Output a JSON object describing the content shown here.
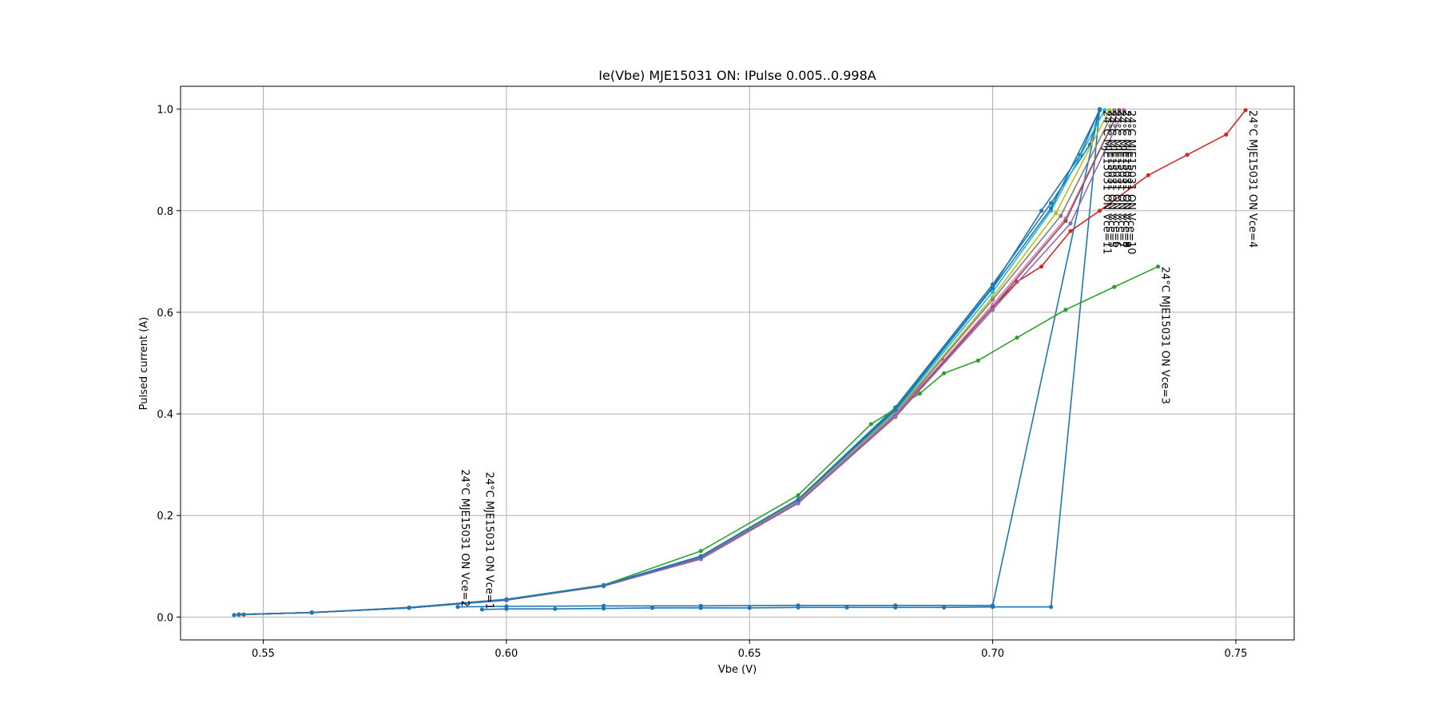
{
  "chart_data": {
    "type": "line",
    "title": "Ie(Vbe) MJE15031 ON: IPulse 0.005..0.998A",
    "xlabel": "Vbe (V)",
    "ylabel": "Pulsed current (A)",
    "xlim": [
      0.533,
      0.762
    ],
    "ylim": [
      -0.045,
      1.045
    ],
    "xticks": [
      0.55,
      0.6,
      0.65,
      0.7,
      0.75
    ],
    "xtick_labels": [
      "0.55",
      "0.60",
      "0.65",
      "0.70",
      "0.75"
    ],
    "yticks": [
      0.0,
      0.2,
      0.4,
      0.6,
      0.8,
      1.0
    ],
    "ytick_labels": [
      "0.0",
      "0.2",
      "0.4",
      "0.6",
      "0.8",
      "1.0"
    ],
    "grid": true,
    "legend": "none",
    "series": [
      {
        "name": "24°C MJE15031 ON Vce=1",
        "color": "#1f77b4",
        "label_anchor": "end",
        "x": [
          0.545,
          0.56,
          0.58,
          0.6,
          0.62,
          0.64,
          0.66,
          0.68,
          0.7,
          0.71,
          0.718,
          0.722,
          0.712,
          0.7,
          0.69,
          0.68,
          0.67,
          0.66,
          0.65,
          0.64,
          0.63,
          0.62,
          0.61,
          0.6,
          0.595
        ],
        "y": [
          0.005,
          0.009,
          0.018,
          0.034,
          0.062,
          0.118,
          0.23,
          0.41,
          0.65,
          0.8,
          0.91,
          1.0,
          0.02,
          0.02,
          0.019,
          0.019,
          0.019,
          0.019,
          0.018,
          0.018,
          0.018,
          0.017,
          0.016,
          0.016,
          0.015
        ]
      },
      {
        "name": "24°C MJE15031 ON Vce=2",
        "color": "#1f77b4",
        "label_anchor": "end",
        "x": [
          0.544,
          0.56,
          0.58,
          0.6,
          0.62,
          0.64,
          0.66,
          0.68,
          0.7,
          0.712,
          0.72,
          0.722,
          0.7,
          0.68,
          0.66,
          0.64,
          0.62,
          0.6,
          0.59
        ],
        "y": [
          0.004,
          0.009,
          0.019,
          0.035,
          0.063,
          0.12,
          0.232,
          0.413,
          0.655,
          0.815,
          0.93,
          1.0,
          0.023,
          0.023,
          0.023,
          0.022,
          0.022,
          0.021,
          0.02
        ]
      },
      {
        "name": "24°C MJE15031 ON Vce=3",
        "color": "#2ca02c",
        "x": [
          0.546,
          0.56,
          0.58,
          0.6,
          0.62,
          0.64,
          0.66,
          0.675,
          0.685,
          0.69,
          0.697,
          0.705,
          0.715,
          0.725,
          0.734
        ],
        "y": [
          0.005,
          0.009,
          0.018,
          0.034,
          0.063,
          0.13,
          0.24,
          0.38,
          0.44,
          0.48,
          0.505,
          0.55,
          0.605,
          0.65,
          0.69
        ]
      },
      {
        "name": "24°C MJE15031 ON Vce=4",
        "color": "#d62728",
        "x": [
          0.546,
          0.56,
          0.58,
          0.6,
          0.62,
          0.64,
          0.66,
          0.68,
          0.69,
          0.7,
          0.705,
          0.71,
          0.716,
          0.722,
          0.732,
          0.74,
          0.748,
          0.752
        ],
        "y": [
          0.005,
          0.009,
          0.018,
          0.034,
          0.062,
          0.116,
          0.225,
          0.4,
          0.505,
          0.61,
          0.66,
          0.69,
          0.76,
          0.8,
          0.87,
          0.91,
          0.95,
          0.998
        ]
      },
      {
        "name": "24°C MJE15031 ON Vce=5",
        "color": "#17becf",
        "x": [
          0.545,
          0.56,
          0.58,
          0.6,
          0.62,
          0.64,
          0.66,
          0.68,
          0.7,
          0.712,
          0.723
        ],
        "y": [
          0.005,
          0.009,
          0.018,
          0.034,
          0.062,
          0.118,
          0.229,
          0.405,
          0.64,
          0.8,
          0.998
        ]
      },
      {
        "name": "24°C MJE15031 ON Vce=6",
        "color": "#bcbd22",
        "x": [
          0.545,
          0.56,
          0.58,
          0.6,
          0.62,
          0.64,
          0.66,
          0.68,
          0.7,
          0.713,
          0.724
        ],
        "y": [
          0.005,
          0.009,
          0.018,
          0.034,
          0.062,
          0.117,
          0.228,
          0.402,
          0.63,
          0.795,
          0.998
        ]
      },
      {
        "name": "24°C MJE15031 ON Vce=7",
        "color": "#7f7f7f",
        "x": [
          0.545,
          0.56,
          0.58,
          0.6,
          0.62,
          0.64,
          0.66,
          0.68,
          0.7,
          0.714,
          0.725
        ],
        "y": [
          0.005,
          0.009,
          0.018,
          0.034,
          0.062,
          0.116,
          0.227,
          0.4,
          0.625,
          0.79,
          0.998
        ]
      },
      {
        "name": "24°C MJE15031 ON Vce=8",
        "color": "#e377c2",
        "x": [
          0.545,
          0.56,
          0.58,
          0.6,
          0.62,
          0.64,
          0.66,
          0.68,
          0.7,
          0.715,
          0.726
        ],
        "y": [
          0.005,
          0.009,
          0.018,
          0.034,
          0.061,
          0.115,
          0.226,
          0.398,
          0.615,
          0.785,
          0.998
        ]
      },
      {
        "name": "24°C MJE15031 ON Vce=9",
        "color": "#8c564b",
        "x": [
          0.545,
          0.56,
          0.58,
          0.6,
          0.62,
          0.64,
          0.66,
          0.68,
          0.7,
          0.715,
          0.726
        ],
        "y": [
          0.005,
          0.009,
          0.018,
          0.034,
          0.061,
          0.115,
          0.225,
          0.396,
          0.61,
          0.78,
          0.998
        ]
      },
      {
        "name": "24°C MJE15031 ON Vce=10",
        "color": "#9467bd",
        "x": [
          0.545,
          0.56,
          0.58,
          0.6,
          0.62,
          0.64,
          0.66,
          0.68,
          0.7,
          0.716,
          0.727
        ],
        "y": [
          0.005,
          0.009,
          0.018,
          0.033,
          0.061,
          0.114,
          0.224,
          0.394,
          0.605,
          0.775,
          0.998
        ]
      },
      {
        "name": "24°C MJE15031 ON Vce=11",
        "color": "#1f77b4",
        "x": [
          0.545,
          0.56,
          0.58,
          0.6,
          0.62,
          0.64,
          0.66,
          0.68,
          0.7,
          0.712,
          0.722
        ],
        "y": [
          0.005,
          0.009,
          0.018,
          0.034,
          0.062,
          0.119,
          0.231,
          0.408,
          0.648,
          0.805,
          0.998
        ]
      }
    ]
  }
}
